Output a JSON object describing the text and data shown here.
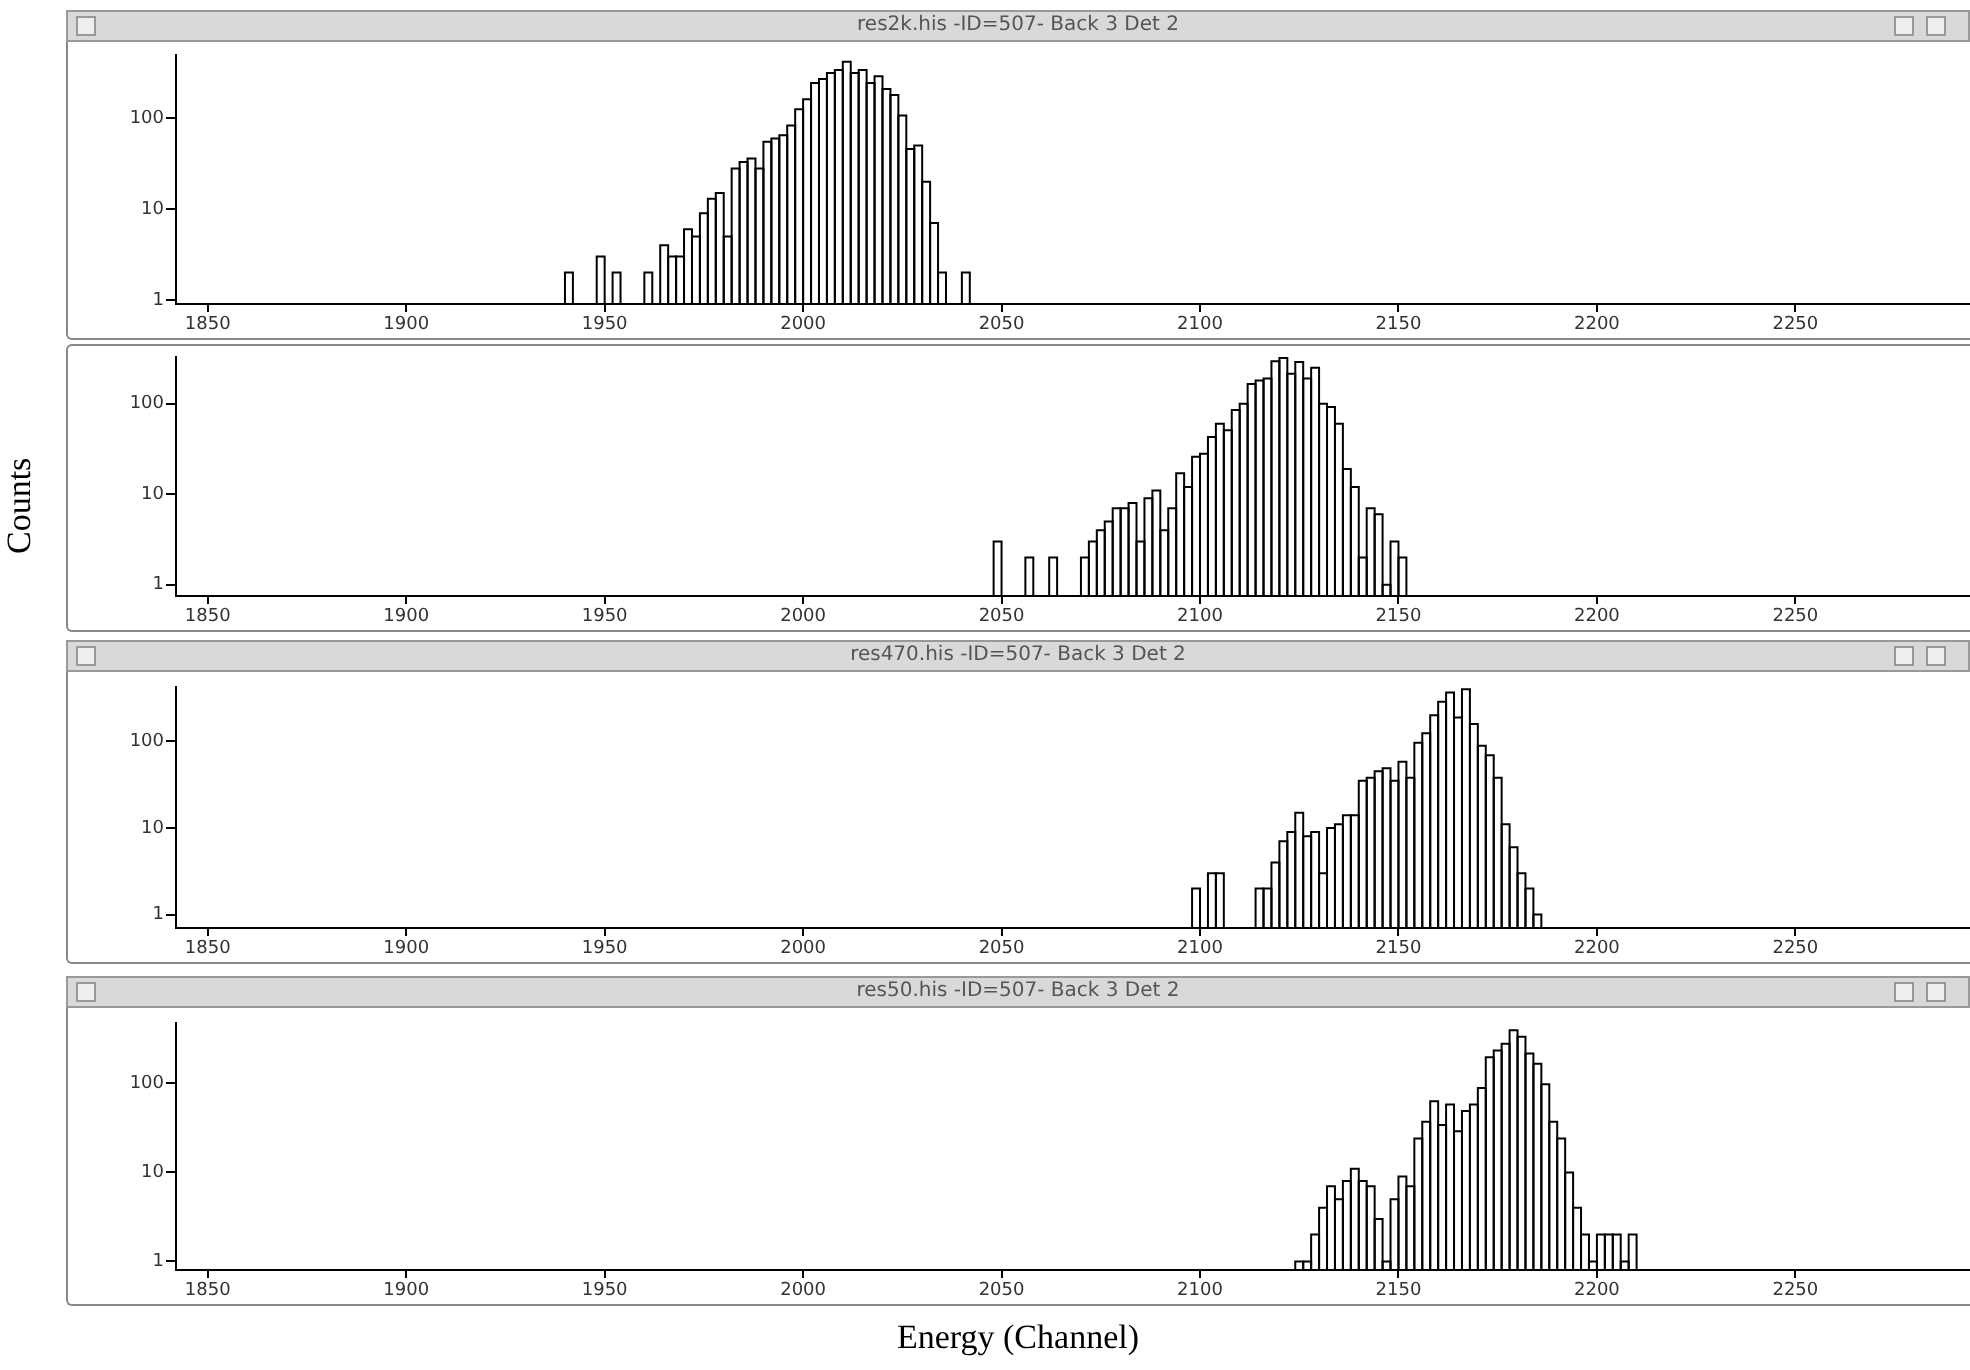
{
  "chart_data": [
    {
      "type": "histogram",
      "title": "res2k.his -ID=507- Back 3 Det 2",
      "log": "y",
      "color": "#000000",
      "xlim": [
        1842,
        2294
      ],
      "xticks": [
        1850,
        1900,
        1950,
        2000,
        2050,
        2100,
        2150,
        2200,
        2250
      ],
      "ylim": [
        0.9,
        500
      ],
      "yticks": [
        1,
        10,
        100
      ],
      "bins": [
        1940,
        1942,
        1948,
        1950,
        1952,
        1954,
        1960,
        1962,
        1964,
        1966,
        1968,
        1970,
        1972,
        1974,
        1976,
        1978,
        1980,
        1982,
        1984,
        1986,
        1988,
        1990,
        1992,
        1994,
        1996,
        1998,
        2000,
        2002,
        2004,
        2006,
        2008,
        2010,
        2012,
        2014,
        2016,
        2018,
        2020,
        2022,
        2024,
        2026,
        2028,
        2030,
        2032,
        2034,
        2036,
        2040,
        2042
      ],
      "values": [
        2,
        null,
        3,
        null,
        2,
        null,
        2,
        null,
        4,
        3,
        3,
        6,
        5,
        9,
        13,
        15,
        5,
        28,
        33,
        36,
        28,
        55,
        60,
        65,
        83,
        126,
        162,
        245,
        270,
        316,
        340,
        420,
        316,
        340,
        245,
        290,
        210,
        180,
        107,
        46,
        50,
        20,
        7,
        2,
        null,
        2
      ]
    },
    {
      "type": "histogram",
      "ylabel": "Counts",
      "log": "y",
      "color": "#000000",
      "xlim": [
        1842,
        2294
      ],
      "xticks": [
        1850,
        1900,
        1950,
        2000,
        2050,
        2100,
        2150,
        2200,
        2250
      ],
      "ylim": [
        0.75,
        330
      ],
      "yticks": [
        1,
        10,
        100
      ],
      "bins": [
        2048,
        2050,
        2056,
        2058,
        2062,
        2064,
        2070,
        2072,
        2074,
        2076,
        2078,
        2080,
        2082,
        2084,
        2086,
        2088,
        2090,
        2092,
        2094,
        2096,
        2098,
        2100,
        2102,
        2104,
        2106,
        2108,
        2110,
        2112,
        2114,
        2116,
        2118,
        2120,
        2122,
        2124,
        2126,
        2128,
        2130,
        2132,
        2134,
        2136,
        2138,
        2140,
        2142,
        2144,
        2146,
        2148,
        2150,
        2152
      ],
      "values": [
        3,
        null,
        2,
        null,
        2,
        null,
        2,
        3,
        4,
        5,
        7,
        7,
        8,
        3,
        9,
        11,
        4,
        7,
        17,
        12,
        26,
        28,
        43,
        60,
        51,
        85,
        100,
        165,
        180,
        190,
        295,
        320,
        215,
        290,
        190,
        250,
        100,
        92,
        60,
        19,
        12,
        2,
        7,
        6,
        1,
        3,
        2
      ]
    },
    {
      "type": "histogram",
      "title": "res470.his -ID=507- Back 3 Det 2",
      "log": "y",
      "color": "#000000",
      "xlim": [
        1842,
        2294
      ],
      "xticks": [
        1850,
        1900,
        1950,
        2000,
        2050,
        2100,
        2150,
        2200,
        2250
      ],
      "ylim": [
        0.7,
        426
      ],
      "yticks": [
        1,
        10,
        100
      ],
      "bins": [
        2098,
        2100,
        2102,
        2104,
        2106,
        2114,
        2116,
        2118,
        2120,
        2122,
        2124,
        2126,
        2128,
        2130,
        2132,
        2134,
        2136,
        2138,
        2140,
        2142,
        2144,
        2146,
        2148,
        2150,
        2152,
        2154,
        2156,
        2158,
        2160,
        2162,
        2164,
        2166,
        2168,
        2170,
        2172,
        2174,
        2176,
        2178,
        2180,
        2182,
        2184,
        2186
      ],
      "values": [
        2,
        null,
        3,
        3,
        null,
        2,
        2,
        4,
        7,
        9,
        15,
        8,
        9,
        3,
        10,
        11,
        14,
        14,
        35,
        38,
        45,
        49,
        35,
        58,
        38,
        96,
        124,
        200,
        287,
        366,
        189,
        400,
        159,
        89,
        69,
        38,
        11,
        6,
        3,
        2,
        1
      ]
    },
    {
      "type": "histogram",
      "title": "res50.his -ID=507- Back 3 Det 2",
      "xlabel": "Energy (Channel)",
      "log": "y",
      "color": "#000000",
      "xlim": [
        1842,
        2294
      ],
      "xticks": [
        1850,
        1900,
        1950,
        2000,
        2050,
        2100,
        2150,
        2200,
        2250
      ],
      "ylim": [
        0.8,
        480
      ],
      "yticks": [
        1,
        10,
        100
      ],
      "bins": [
        2124,
        2126,
        2128,
        2130,
        2132,
        2134,
        2136,
        2138,
        2140,
        2142,
        2144,
        2146,
        2148,
        2150,
        2152,
        2154,
        2156,
        2158,
        2160,
        2162,
        2164,
        2166,
        2168,
        2170,
        2172,
        2174,
        2176,
        2178,
        2180,
        2182,
        2184,
        2186,
        2188,
        2190,
        2192,
        2194,
        2196,
        2198,
        2200,
        2202,
        2204,
        2206,
        2208,
        2210
      ],
      "values": [
        1,
        1,
        2,
        4,
        7,
        5,
        8,
        11,
        8,
        7,
        3,
        1,
        5,
        9,
        7,
        24,
        37,
        63,
        34,
        58,
        29,
        49,
        58,
        89,
        197,
        234,
        279,
        396,
        335,
        217,
        166,
        98,
        37,
        24,
        10,
        4,
        2,
        1,
        2,
        2,
        2,
        1,
        2
      ]
    }
  ]
}
